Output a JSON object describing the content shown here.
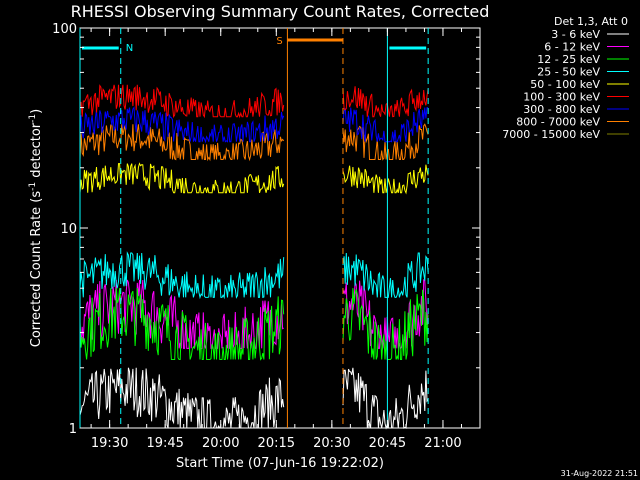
{
  "chart_data": {
    "type": "line",
    "title": "RHESSI Observing Summary Count Rates, Corrected",
    "xlabel": "Start Time (07-Jun-16 19:22:02)",
    "ylabel_main": "Corrected Count Rate (s",
    "ylabel_sup1": "-1",
    "ylabel_mid": " detector",
    "ylabel_sup2": "-1",
    "ylabel_end": ")",
    "y_scale": "log",
    "ylim": [
      1,
      100
    ],
    "xlim_minutes": [
      0,
      108
    ],
    "x_ticks": [
      {
        "label": "19:30",
        "minutes": 8
      },
      {
        "label": "19:45",
        "minutes": 23
      },
      {
        "label": "20:00",
        "minutes": 38
      },
      {
        "label": "20:15",
        "minutes": 53
      },
      {
        "label": "20:30",
        "minutes": 68
      },
      {
        "label": "20:45",
        "minutes": 83
      },
      {
        "label": "21:00",
        "minutes": 98
      }
    ],
    "y_ticks": [
      {
        "label": "1",
        "value": 1
      },
      {
        "label": "10",
        "value": 10
      },
      {
        "label": "100",
        "value": 100
      }
    ],
    "legend_title": "Det 1,3, Att 0",
    "legend_position": "top-right outside",
    "series": [
      {
        "name": "3 - 6 keV",
        "color": "#ffffff",
        "band": [
          1.0,
          2.0
        ],
        "segments": [
          [
            0,
            55
          ],
          [
            71,
            94
          ]
        ]
      },
      {
        "name": "6 - 12 keV",
        "color": "#ff00ff",
        "band": [
          2.5,
          5.5
        ],
        "segments": [
          [
            0,
            55
          ],
          [
            71,
            94
          ]
        ]
      },
      {
        "name": "12 - 25 keV",
        "color": "#00ff00",
        "band": [
          2.2,
          5.0
        ],
        "segments": [
          [
            0,
            55
          ],
          [
            71,
            94
          ]
        ]
      },
      {
        "name": "25 - 50 keV",
        "color": "#00ffff",
        "band": [
          4.5,
          7.5
        ],
        "segments": [
          [
            0,
            55
          ],
          [
            71,
            94
          ]
        ]
      },
      {
        "name": "50 - 100 keV",
        "color": "#ffff00",
        "band": [
          15,
          21
        ],
        "segments": [
          [
            0,
            55
          ],
          [
            71,
            94
          ]
        ]
      },
      {
        "name": "100 - 300 keV",
        "color": "#ff0000",
        "band": [
          36,
          52
        ],
        "segments": [
          [
            0,
            55
          ],
          [
            71,
            94
          ]
        ]
      },
      {
        "name": "300 - 800 keV",
        "color": "#0000ff",
        "band": [
          27,
          40
        ],
        "segments": [
          [
            0,
            55
          ],
          [
            71,
            94
          ]
        ]
      },
      {
        "name": "800 - 7000 keV",
        "color": "#ff8000",
        "band": [
          22,
          33
        ],
        "segments": [
          [
            0,
            55
          ],
          [
            71,
            94
          ]
        ]
      },
      {
        "name": "7000 - 15000 keV",
        "color": "#808000",
        "band": [
          1.0,
          2.8
        ],
        "segments": [
          [
            0,
            55
          ],
          [
            71,
            94
          ]
        ]
      }
    ],
    "annotations": [
      {
        "label": "N",
        "kind": "night",
        "color": "#00ffff",
        "start": 0,
        "end": 11
      },
      {
        "label": "",
        "kind": "night",
        "color": "#00ffff",
        "start": 83,
        "end": 94
      },
      {
        "label": "S",
        "kind": "saa",
        "color": "#ff8000",
        "start": 56,
        "end": 71
      }
    ]
  },
  "footer_date": "31-Aug-2022 21:51",
  "colors": {
    "background": "#000000",
    "foreground": "#ffffff"
  }
}
